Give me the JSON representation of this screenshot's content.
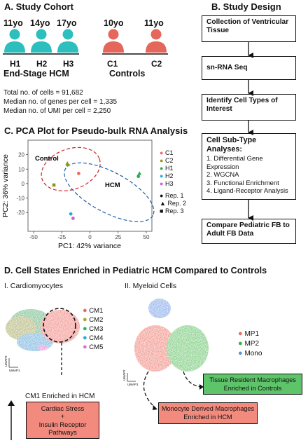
{
  "panel_a": {
    "title": "A. Study Cohort",
    "hcm_people": [
      {
        "age": "11yo",
        "id": "H1"
      },
      {
        "age": "14yo",
        "id": "H2"
      },
      {
        "age": "17yo",
        "id": "H3"
      }
    ],
    "control_people": [
      {
        "age": "10yo",
        "id": "C1"
      },
      {
        "age": "11yo",
        "id": "C2"
      }
    ],
    "hcm_label": "End-Stage HCM",
    "control_label": "Controls",
    "stats": [
      "Total no. of cells = 91,682",
      "Median no. of genes per cell = 1,335",
      "Median no. of UMI per cell = 2,250"
    ],
    "colors": {
      "hcm": "#2dbfbd",
      "control": "#e5665a"
    }
  },
  "panel_b": {
    "title": "B. Study Design",
    "steps": [
      {
        "title": "Collection of Ventricular Tissue"
      },
      {
        "title": "sn-RNA Seq"
      },
      {
        "title": "Identify Cell Types of Interest"
      },
      {
        "title": "Cell Sub-Type Analyses:",
        "items": [
          "1. Differential Gene Expression",
          "2. WGCNA",
          "3. Functional Enrichment",
          "4. Ligand-Receptor Analysis"
        ]
      },
      {
        "title": "Compare Pediatric FB to Adult FB Data"
      }
    ]
  },
  "panel_c": {
    "title": "C. PCA Plot for Pseudo-bulk RNA Analysis",
    "group_labels": {
      "control": "Control",
      "hcm": "HCM"
    },
    "sample_legend": [
      {
        "name": "C1",
        "color": "#f06b5e"
      },
      {
        "name": "C2",
        "color": "#8a9a1c"
      },
      {
        "name": "H1",
        "color": "#2fa84f"
      },
      {
        "name": "H2",
        "color": "#27a9d6"
      },
      {
        "name": "H3",
        "color": "#d15ad6"
      }
    ],
    "rep_legend": [
      {
        "name": "Rep. 1",
        "shape": "circle"
      },
      {
        "name": "Rep. 2",
        "shape": "triangle"
      },
      {
        "name": "Rep. 3",
        "shape": "square"
      }
    ],
    "chart_data": {
      "type": "scatter",
      "xlabel": "PC1: 42% variance",
      "ylabel": "PC2: 36% variance",
      "xlim": [
        -55,
        55
      ],
      "ylim": [
        -33,
        30
      ],
      "xticks": [
        -50,
        -25,
        0,
        25,
        50
      ],
      "yticks": [
        -20,
        -10,
        0,
        10,
        20
      ],
      "points": [
        {
          "sample": "C2",
          "rep": "Rep. 2",
          "shape": "triangle",
          "color": "#8a9a1c",
          "x": -20,
          "y": 14
        },
        {
          "sample": "C2",
          "rep": "Rep. 1",
          "shape": "circle",
          "color": "#8a9a1c",
          "x": -20,
          "y": 13
        },
        {
          "sample": "C1",
          "rep": "Rep. 1",
          "shape": "circle",
          "color": "#f06b5e",
          "x": -10,
          "y": 7
        },
        {
          "sample": "C2",
          "rep": "Rep. 3",
          "shape": "square",
          "color": "#8a9a1c",
          "x": -32,
          "y": -1
        },
        {
          "sample": "H1",
          "rep": "Rep. 2",
          "shape": "triangle",
          "color": "#2fa84f",
          "x": 44,
          "y": 7
        },
        {
          "sample": "H1",
          "rep": "Rep. 1",
          "shape": "circle",
          "color": "#2fa84f",
          "x": 43,
          "y": 5
        },
        {
          "sample": "H2",
          "rep": "Rep. 1",
          "shape": "circle",
          "color": "#27a9d6",
          "x": -17,
          "y": -21
        },
        {
          "sample": "H3",
          "rep": "Rep. 1",
          "shape": "circle",
          "color": "#d15ad6",
          "x": -15,
          "y": -24
        }
      ],
      "ellipses": [
        {
          "group": "Control",
          "cx": -17,
          "cy": 10,
          "rx": 27,
          "ry": 14,
          "angle": -20,
          "color": "#c62828"
        },
        {
          "group": "HCM",
          "cx": 17,
          "cy": -6,
          "rx": 44,
          "ry": 14,
          "angle": 28,
          "color": "#1f5ea8"
        }
      ]
    }
  },
  "panel_d": {
    "title": "D. Cell States Enriched in Pediatric HCM Compared to Controls",
    "cardio": {
      "subtitle": "I. Cardiomyocytes",
      "legend": [
        {
          "name": "CM1",
          "color": "#f06b5e"
        },
        {
          "name": "CM2",
          "color": "#a6a91f"
        },
        {
          "name": "CM3",
          "color": "#26b36b"
        },
        {
          "name": "CM4",
          "color": "#29a8dd"
        },
        {
          "name": "CM5",
          "color": "#e269d8"
        }
      ],
      "enriched_label": "CM1 Enriched in HCM",
      "box_text": [
        "Cardiac Stress",
        "+",
        "Insulin Receptor",
        "Pathways"
      ],
      "umap1": "UMAP1",
      "umap2": "UMAP2"
    },
    "myeloid": {
      "subtitle": "II. Myeloid Cells",
      "legend": [
        {
          "name": "MP1",
          "color": "#f06b5e"
        },
        {
          "name": "MP2",
          "color": "#2fb34a"
        },
        {
          "name": "Mono",
          "color": "#5b8fde"
        }
      ],
      "resident_box": [
        "Tissue Resident Macrophages",
        "Enriched in Controls"
      ],
      "monocyte_box": [
        "Monocyte Derived Macrophages",
        "Enriched in HCM"
      ],
      "umap1": "UMAP1",
      "umap2": "UMAP2"
    },
    "colors": {
      "red_box": "#f28a7e",
      "green_box": "#5ec46a"
    }
  }
}
